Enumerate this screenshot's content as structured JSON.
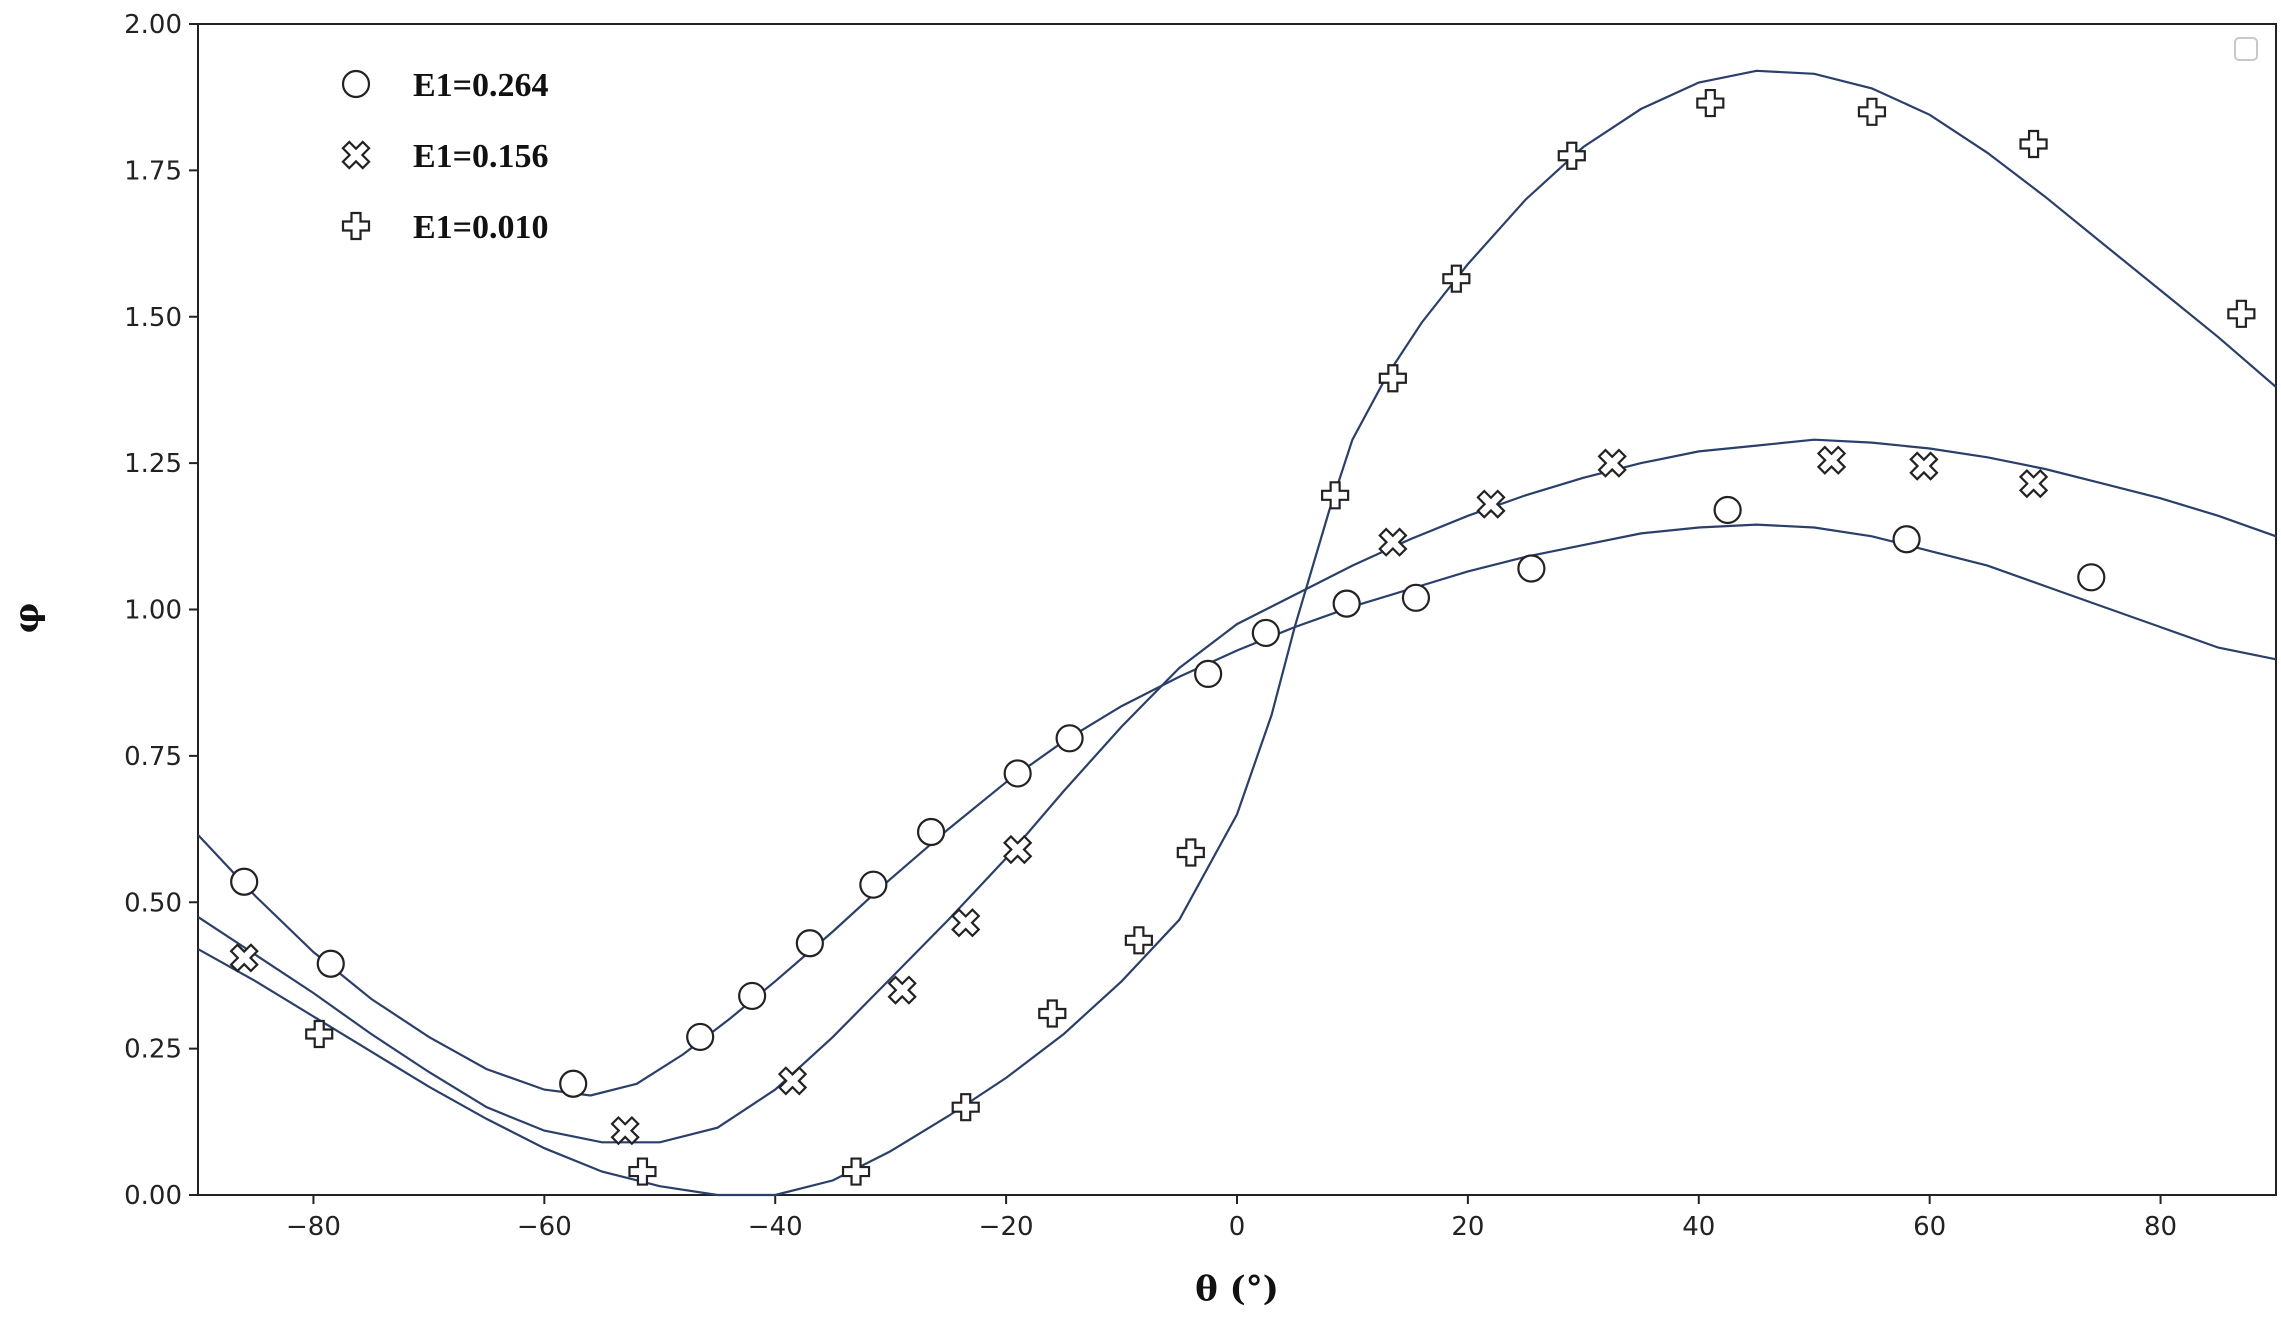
{
  "chart_data": {
    "type": "scatter",
    "title": "",
    "xlabel": "θ (°)",
    "ylabel": "φ",
    "xlim": [
      -90,
      90
    ],
    "ylim": [
      0,
      2
    ],
    "xticks": [
      -80,
      -60,
      -40,
      -20,
      0,
      20,
      40,
      60,
      80
    ],
    "yticks": [
      0,
      0.25,
      0.5,
      0.75,
      1.0,
      1.25,
      1.5,
      1.75,
      2.0
    ],
    "xtick_labels": [
      "−80",
      "−60",
      "−40",
      "−20",
      "0",
      "20",
      "40",
      "60",
      "80"
    ],
    "ytick_labels": [
      "0.00",
      "0.25",
      "0.50",
      "0.75",
      "1.00",
      "1.25",
      "1.50",
      "1.75",
      "2.00"
    ],
    "grid": false,
    "legend_position": "top-left",
    "curve_color": "#2b3f6b",
    "series": [
      {
        "name": "E1=0.264",
        "marker": "circle",
        "points": [
          [
            -86,
            0.535
          ],
          [
            -78.5,
            0.395
          ],
          [
            -57.5,
            0.19
          ],
          [
            -46.5,
            0.27
          ],
          [
            -42,
            0.34
          ],
          [
            -37,
            0.43
          ],
          [
            -31.5,
            0.53
          ],
          [
            -26.5,
            0.62
          ],
          [
            -19,
            0.72
          ],
          [
            -14.5,
            0.78
          ],
          [
            -2.5,
            0.89
          ],
          [
            2.5,
            0.96
          ],
          [
            9.5,
            1.01
          ],
          [
            15.5,
            1.02
          ],
          [
            25.5,
            1.07
          ],
          [
            42.5,
            1.17
          ],
          [
            58,
            1.12
          ],
          [
            74,
            1.055
          ]
        ],
        "curve": [
          [
            -90,
            0.615
          ],
          [
            -85,
            0.51
          ],
          [
            -80,
            0.415
          ],
          [
            -75,
            0.335
          ],
          [
            -70,
            0.27
          ],
          [
            -65,
            0.215
          ],
          [
            -60,
            0.18
          ],
          [
            -56,
            0.17
          ],
          [
            -52,
            0.19
          ],
          [
            -48,
            0.24
          ],
          [
            -44,
            0.3
          ],
          [
            -40,
            0.365
          ],
          [
            -35,
            0.45
          ],
          [
            -30,
            0.54
          ],
          [
            -25,
            0.625
          ],
          [
            -20,
            0.705
          ],
          [
            -15,
            0.775
          ],
          [
            -10,
            0.835
          ],
          [
            -5,
            0.885
          ],
          [
            0,
            0.93
          ],
          [
            5,
            0.97
          ],
          [
            10,
            1.005
          ],
          [
            15,
            1.035
          ],
          [
            20,
            1.065
          ],
          [
            25,
            1.09
          ],
          [
            30,
            1.11
          ],
          [
            35,
            1.13
          ],
          [
            40,
            1.14
          ],
          [
            45,
            1.145
          ],
          [
            50,
            1.14
          ],
          [
            55,
            1.125
          ],
          [
            60,
            1.1
          ],
          [
            65,
            1.075
          ],
          [
            70,
            1.04
          ],
          [
            75,
            1.005
          ],
          [
            80,
            0.97
          ],
          [
            85,
            0.935
          ],
          [
            90,
            0.915
          ]
        ]
      },
      {
        "name": "E1=0.156",
        "marker": "x-cross",
        "points": [
          [
            -86,
            0.405
          ],
          [
            -53,
            0.11
          ],
          [
            -38.5,
            0.195
          ],
          [
            -29,
            0.35
          ],
          [
            -23.5,
            0.465
          ],
          [
            -19,
            0.59
          ],
          [
            13.5,
            1.115
          ],
          [
            22,
            1.18
          ],
          [
            32.5,
            1.25
          ],
          [
            51.5,
            1.255
          ],
          [
            59.5,
            1.245
          ],
          [
            69,
            1.215
          ]
        ],
        "curve": [
          [
            -90,
            0.475
          ],
          [
            -85,
            0.41
          ],
          [
            -80,
            0.345
          ],
          [
            -75,
            0.275
          ],
          [
            -70,
            0.21
          ],
          [
            -65,
            0.15
          ],
          [
            -60,
            0.11
          ],
          [
            -55,
            0.09
          ],
          [
            -50,
            0.09
          ],
          [
            -45,
            0.115
          ],
          [
            -40,
            0.18
          ],
          [
            -35,
            0.27
          ],
          [
            -30,
            0.37
          ],
          [
            -25,
            0.47
          ],
          [
            -20,
            0.575
          ],
          [
            -15,
            0.69
          ],
          [
            -10,
            0.8
          ],
          [
            -5,
            0.9
          ],
          [
            0,
            0.975
          ],
          [
            5,
            1.025
          ],
          [
            10,
            1.075
          ],
          [
            15,
            1.12
          ],
          [
            20,
            1.16
          ],
          [
            25,
            1.195
          ],
          [
            30,
            1.225
          ],
          [
            35,
            1.25
          ],
          [
            40,
            1.27
          ],
          [
            45,
            1.28
          ],
          [
            50,
            1.29
          ],
          [
            55,
            1.285
          ],
          [
            60,
            1.275
          ],
          [
            65,
            1.26
          ],
          [
            70,
            1.24
          ],
          [
            75,
            1.215
          ],
          [
            80,
            1.19
          ],
          [
            85,
            1.16
          ],
          [
            90,
            1.125
          ]
        ]
      },
      {
        "name": "E1=0.010",
        "marker": "plus",
        "points": [
          [
            -79.5,
            0.275
          ],
          [
            -51.5,
            0.04
          ],
          [
            -33,
            0.04
          ],
          [
            -23.5,
            0.15
          ],
          [
            -16,
            0.31
          ],
          [
            -8.5,
            0.435
          ],
          [
            -4,
            0.585
          ],
          [
            8.5,
            1.195
          ],
          [
            13.5,
            1.395
          ],
          [
            19,
            1.565
          ],
          [
            29,
            1.775
          ],
          [
            41,
            1.865
          ],
          [
            55,
            1.85
          ],
          [
            69,
            1.795
          ],
          [
            87,
            1.505
          ]
        ],
        "curve": [
          [
            -90,
            0.42
          ],
          [
            -85,
            0.365
          ],
          [
            -80,
            0.305
          ],
          [
            -75,
            0.245
          ],
          [
            -70,
            0.185
          ],
          [
            -65,
            0.13
          ],
          [
            -60,
            0.08
          ],
          [
            -55,
            0.04
          ],
          [
            -50,
            0.015
          ],
          [
            -45,
            0.0
          ],
          [
            -40,
            0.0
          ],
          [
            -35,
            0.025
          ],
          [
            -30,
            0.075
          ],
          [
            -25,
            0.135
          ],
          [
            -20,
            0.2
          ],
          [
            -15,
            0.275
          ],
          [
            -10,
            0.365
          ],
          [
            -5,
            0.47
          ],
          [
            0,
            0.65
          ],
          [
            3,
            0.82
          ],
          [
            5,
            0.97
          ],
          [
            8,
            1.17
          ],
          [
            10,
            1.29
          ],
          [
            13,
            1.4
          ],
          [
            16,
            1.49
          ],
          [
            20,
            1.59
          ],
          [
            25,
            1.7
          ],
          [
            30,
            1.79
          ],
          [
            35,
            1.855
          ],
          [
            40,
            1.9
          ],
          [
            45,
            1.92
          ],
          [
            50,
            1.915
          ],
          [
            55,
            1.89
          ],
          [
            60,
            1.845
          ],
          [
            65,
            1.78
          ],
          [
            70,
            1.705
          ],
          [
            75,
            1.625
          ],
          [
            80,
            1.545
          ],
          [
            85,
            1.465
          ],
          [
            90,
            1.38
          ]
        ]
      }
    ]
  }
}
